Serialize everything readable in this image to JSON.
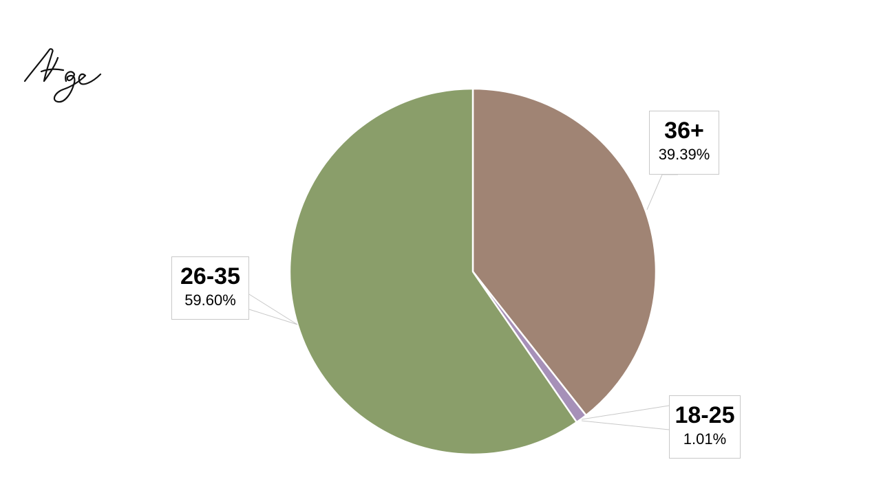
{
  "chart_data": {
    "type": "pie",
    "title": "Age",
    "categories": [
      "36+",
      "18-25",
      "26-35"
    ],
    "values": [
      39.39,
      1.01,
      59.6
    ],
    "labels": [
      "39.39%",
      "1.01%",
      "59.60%"
    ],
    "colors": [
      "#a08474",
      "#a690b8",
      "#8a9e6a"
    ],
    "start_angle_deg": 0,
    "direction": "clockwise",
    "legend": "none",
    "data_labels": "callouts"
  }
}
